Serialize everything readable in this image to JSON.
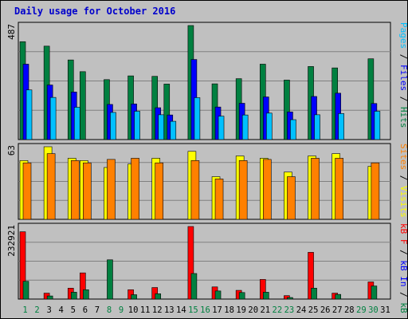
{
  "title": "Daily usage for October 2016",
  "colors": {
    "background": "#c0c0c0",
    "panel": "#c0c0c0",
    "title": "#0000cc",
    "hits": "#008040",
    "files": "#0000ff",
    "pages": "#00c0ff",
    "visits": "#ffff00",
    "sites": "#ff8000",
    "kb_in": "#0000ff",
    "kb_out": "#008040",
    "kb_f": "#ff0000",
    "weekday": "#000000",
    "weekend": "#008040"
  },
  "legend": {
    "top": [
      {
        "key": "pages",
        "label": "Pages"
      },
      {
        "key": "sep",
        "label": " / "
      },
      {
        "key": "files",
        "label": "Files"
      },
      {
        "key": "sep",
        "label": " / "
      },
      {
        "key": "hits",
        "label": "Hits"
      }
    ],
    "mid": [
      {
        "key": "sites",
        "label": "Sites"
      },
      {
        "key": "sep",
        "label": " / "
      },
      {
        "key": "visits",
        "label": "Visits"
      }
    ],
    "bot": [
      {
        "key": "kb_f",
        "label": "kB F"
      },
      {
        "key": "sep",
        "label": " / "
      },
      {
        "key": "kb_in",
        "label": "kB In"
      },
      {
        "key": "sep",
        "label": " / "
      },
      {
        "key": "kb_out",
        "label": "kB Out"
      }
    ]
  },
  "chart_data": {
    "type": "bar",
    "title": "Daily usage for October 2016",
    "categories": [
      "1",
      "2",
      "3",
      "4",
      "5",
      "6",
      "7",
      "8",
      "9",
      "10",
      "11",
      "12",
      "13",
      "14",
      "15",
      "16",
      "17",
      "18",
      "19",
      "20",
      "21",
      "22",
      "23",
      "24",
      "25",
      "26",
      "27",
      "28",
      "29",
      "30",
      "31"
    ],
    "weekend_days": [
      "1",
      "2",
      "8",
      "9",
      "15",
      "16",
      "22",
      "23",
      "29",
      "30"
    ],
    "panels": [
      {
        "name": "pages-files-hits",
        "max_label": "487",
        "ylim": [
          0,
          487
        ],
        "series": [
          {
            "name": "Hits",
            "color": "#008040",
            "values": [
              418,
              0,
              399,
              0,
              340,
              290,
              0,
              256,
              0,
              272,
              0,
              270,
              237,
              0,
              487,
              0,
              238,
              0,
              260,
              0,
              322,
              0,
              254,
              0,
              312,
              0,
              306,
              0,
              0,
              345,
              0
            ]
          },
          {
            "name": "Files",
            "color": "#0000ff",
            "values": [
              322,
              0,
              233,
              0,
              203,
              0,
              0,
              150,
              0,
              152,
              0,
              136,
              105,
              0,
              342,
              0,
              139,
              0,
              155,
              0,
              182,
              0,
              118,
              0,
              184,
              0,
              198,
              0,
              0,
              154,
              0
            ]
          },
          {
            "name": "Pages",
            "color": "#00c0ff",
            "values": [
              212,
              0,
              180,
              0,
              138,
              0,
              0,
              116,
              0,
              121,
              0,
              106,
              78,
              0,
              179,
              0,
              100,
              0,
              105,
              0,
              113,
              0,
              85,
              0,
              106,
              0,
              111,
              0,
              0,
              121,
              0
            ]
          }
        ]
      },
      {
        "name": "sites-visits",
        "max_label": "63",
        "ylim": [
          0,
          63
        ],
        "series": [
          {
            "name": "Visits",
            "color": "#ffff00",
            "values": [
              51,
              0,
              63,
              0,
              53,
              51,
              0,
              45,
              0,
              48,
              0,
              53,
              0,
              0,
              59,
              0,
              37,
              0,
              55,
              0,
              53,
              0,
              41,
              0,
              55,
              0,
              57,
              0,
              0,
              46,
              0
            ]
          },
          {
            "name": "Sites",
            "color": "#ff8000",
            "values": [
              49,
              0,
              57,
              0,
              51,
              49,
              0,
              52,
              0,
              53,
              0,
              49,
              0,
              0,
              51,
              0,
              35,
              0,
              51,
              0,
              52,
              0,
              37,
              0,
              53,
              0,
              53,
              0,
              0,
              49,
              0
            ]
          }
        ]
      },
      {
        "name": "kb",
        "max_label": "232921",
        "ylim": [
          0,
          232921
        ],
        "series": [
          {
            "name": "kB F",
            "color": "#ff0000",
            "values": [
              216000,
              0,
              19000,
              0,
              35000,
              84000,
              0,
              0,
              0,
              30000,
              0,
              37000,
              0,
              0,
              232921,
              0,
              39000,
              0,
              28000,
              0,
              63000,
              0,
              11000,
              0,
              150000,
              0,
              19000,
              0,
              0,
              55000,
              0
            ]
          },
          {
            "name": "kB In",
            "color": "#0000ff",
            "values": [
              0,
              0,
              0,
              0,
              0,
              0,
              0,
              0,
              0,
              0,
              0,
              0,
              0,
              0,
              0,
              0,
              0,
              0,
              0,
              0,
              0,
              0,
              0,
              0,
              0,
              0,
              0,
              0,
              0,
              0,
              0
            ]
          },
          {
            "name": "kB Out",
            "color": "#008040",
            "values": [
              57000,
              0,
              10000,
              0,
              22000,
              30000,
              0,
              126000,
              0,
              14000,
              0,
              17000,
              0,
              0,
              82000,
              0,
              26000,
              0,
              21000,
              0,
              22000,
              0,
              5000,
              0,
              35000,
              0,
              15000,
              0,
              0,
              42000,
              0
            ]
          }
        ]
      }
    ]
  }
}
